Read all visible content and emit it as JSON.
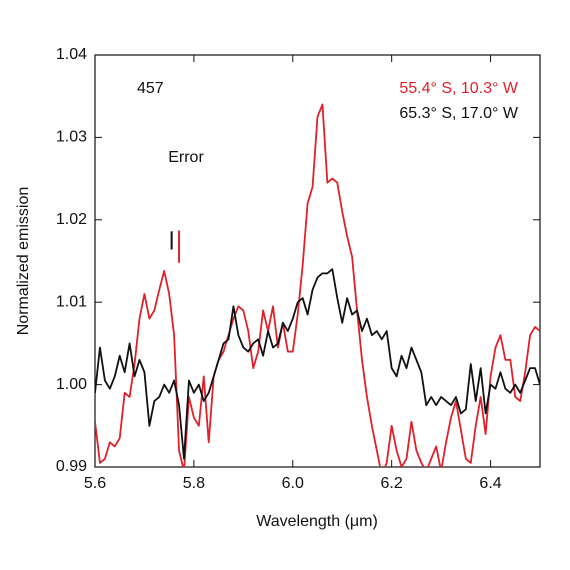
{
  "chart_data": {
    "type": "line",
    "xlabel": "Wavelength (μm)",
    "ylabel": "Normalized emission",
    "annotation": "457",
    "error_label": "Error",
    "x": [
      5.6,
      5.61,
      5.62,
      5.63,
      5.64,
      5.65,
      5.66,
      5.67,
      5.68,
      5.69,
      5.7,
      5.71,
      5.72,
      5.73,
      5.74,
      5.75,
      5.76,
      5.77,
      5.78,
      5.79,
      5.8,
      5.81,
      5.82,
      5.83,
      5.84,
      5.85,
      5.86,
      5.87,
      5.88,
      5.89,
      5.9,
      5.91,
      5.92,
      5.93,
      5.94,
      5.95,
      5.96,
      5.97,
      5.98,
      5.99,
      6.0,
      6.01,
      6.02,
      6.03,
      6.04,
      6.05,
      6.06,
      6.07,
      6.08,
      6.09,
      6.1,
      6.11,
      6.12,
      6.13,
      6.14,
      6.15,
      6.16,
      6.17,
      6.18,
      6.19,
      6.2,
      6.21,
      6.22,
      6.23,
      6.24,
      6.25,
      6.26,
      6.27,
      6.28,
      6.29,
      6.3,
      6.31,
      6.32,
      6.33,
      6.34,
      6.35,
      6.36,
      6.37,
      6.38,
      6.39,
      6.4,
      6.41,
      6.42,
      6.43,
      6.44,
      6.45,
      6.46,
      6.47,
      6.48,
      6.49,
      6.5
    ],
    "series": [
      {
        "name": "55.4° S, 10.3° W",
        "color": "#e0202a",
        "values": [
          0.9955,
          0.9905,
          0.991,
          0.993,
          0.9925,
          0.9935,
          0.999,
          0.9985,
          1.0025,
          1.008,
          1.011,
          1.008,
          1.009,
          1.0115,
          1.0138,
          1.011,
          1.006,
          0.992,
          0.9895,
          0.9985,
          0.996,
          0.995,
          1.001,
          0.993,
          1.001,
          1.003,
          1.004,
          1.006,
          1.008,
          1.0095,
          1.009,
          1.0065,
          1.002,
          1.004,
          1.009,
          1.0065,
          1.0095,
          1.0045,
          1.0075,
          1.004,
          1.004,
          1.0085,
          1.0145,
          1.022,
          1.024,
          1.0325,
          1.034,
          1.0245,
          1.025,
          1.0245,
          1.021,
          1.018,
          1.0155,
          1.009,
          1.003,
          0.9985,
          0.995,
          0.992,
          0.989,
          0.9905,
          0.995,
          0.992,
          0.99,
          0.991,
          0.9955,
          0.992,
          0.9905,
          0.9895,
          0.991,
          0.9925,
          0.9895,
          0.993,
          0.996,
          0.998,
          0.9945,
          0.991,
          0.9905,
          0.995,
          0.9985,
          0.994,
          1.001,
          1.0045,
          1.006,
          1.003,
          1.003,
          0.9985,
          0.998,
          1.0015,
          1.006,
          1.007,
          1.0065
        ]
      },
      {
        "name": "65.3° S, 17.0° W",
        "color": "#111111",
        "values": [
          0.999,
          1.0045,
          1.0005,
          0.9995,
          1.001,
          1.0035,
          1.0015,
          1.005,
          1.001,
          1.003,
          1.0015,
          0.995,
          0.998,
          0.9985,
          1.0,
          0.999,
          1.0005,
          0.9975,
          0.991,
          1.0005,
          0.999,
          1.0,
          0.998,
          0.999,
          1.001,
          1.003,
          1.005,
          1.0055,
          1.0095,
          1.006,
          1.0045,
          1.004,
          1.005,
          1.0055,
          1.0035,
          1.0065,
          1.0045,
          1.005,
          1.0075,
          1.0065,
          1.008,
          1.01,
          1.0105,
          1.0085,
          1.0115,
          1.013,
          1.0135,
          1.0135,
          1.014,
          1.0105,
          1.0075,
          1.0105,
          1.0085,
          1.009,
          1.0065,
          1.008,
          1.006,
          1.0065,
          1.0055,
          1.0065,
          1.002,
          1.001,
          1.0035,
          1.002,
          1.0045,
          1.003,
          1.0015,
          0.9975,
          0.9985,
          0.9975,
          0.9985,
          0.998,
          0.9975,
          0.9985,
          0.9965,
          0.997,
          1.0025,
          0.998,
          1.002,
          0.9965,
          1.0,
          0.9995,
          1.0015,
          0.9995,
          0.999,
          1.0,
          0.999,
          1.0005,
          1.002,
          1.002,
          1.0
        ]
      }
    ],
    "error_bars": [
      {
        "color": "#111111",
        "x": 5.755,
        "low": 1.0164,
        "high": 1.0186
      },
      {
        "color": "#e0202a",
        "x": 5.77,
        "low": 1.0148,
        "high": 1.0187
      }
    ],
    "xlim": [
      5.6,
      6.5
    ],
    "ylim": [
      0.99,
      1.04
    ],
    "xticks": [
      5.6,
      5.8,
      {
        "value": 6,
        "label": "6.0"
      },
      6.2,
      6.4
    ],
    "yticks": [
      0.99,
      {
        "value": 1,
        "label": "1.00"
      },
      1.01,
      1.02,
      1.03,
      1.04
    ],
    "grid": false
  }
}
